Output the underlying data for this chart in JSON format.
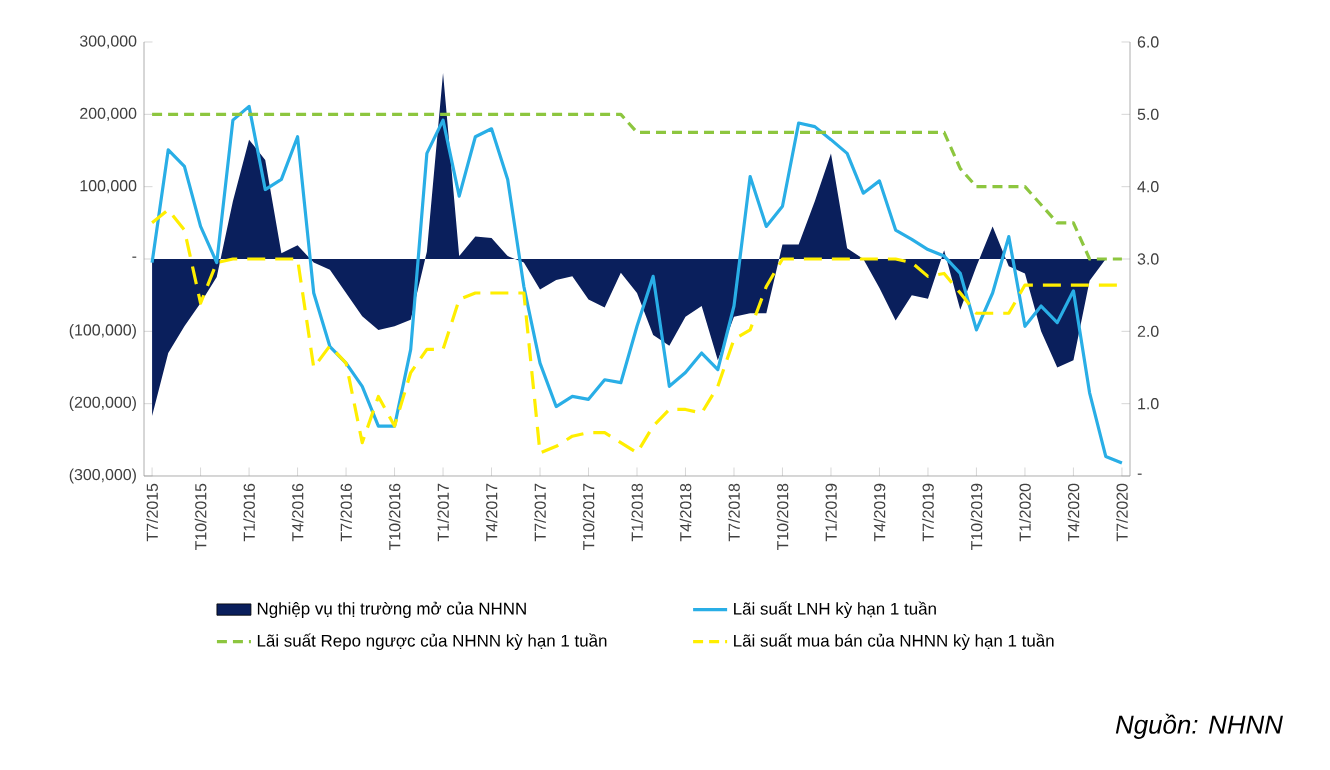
{
  "chart_data": {
    "type": "line",
    "categories": [
      "T7/2015",
      null,
      null,
      "T10/2015",
      null,
      null,
      "T1/2016",
      null,
      null,
      "T4/2016",
      null,
      null,
      "T7/2016",
      null,
      null,
      "T10/2016",
      null,
      null,
      "T1/2017",
      null,
      null,
      "T4/2017",
      null,
      null,
      "T7/2017",
      null,
      null,
      "T10/2017",
      null,
      null,
      "T1/2018",
      null,
      null,
      "T4/2018",
      null,
      null,
      "T7/2018",
      null,
      null,
      "T10/2018",
      null,
      null,
      "T1/2019",
      null,
      null,
      "T4/2019",
      null,
      null,
      "T7/2019",
      null,
      null,
      "T10/2019",
      null,
      null,
      "T1/2020",
      null,
      null,
      "T4/2020",
      null,
      null,
      "T7/2020"
    ],
    "series": [
      {
        "name": "Nghiệp  vụ thị trường mở của NHNN",
        "type": "area",
        "axis": "y",
        "color": "#0a1f5c",
        "values": [
          -217000,
          -130000,
          -93000,
          -61000,
          -25000,
          80000,
          165000,
          137000,
          8000,
          19000,
          -5000,
          -15000,
          -47000,
          -79000,
          -98000,
          -93000,
          -84000,
          10000,
          257000,
          4000,
          31000,
          29000,
          4000,
          -5000,
          -42000,
          -29000,
          -24000,
          -56000,
          -67000,
          -19000,
          -47000,
          -105000,
          -120000,
          -80000,
          -65000,
          -140000,
          -80000,
          -75000,
          -75000,
          20000,
          20000,
          80000,
          146000,
          15000,
          0,
          -40000,
          -85000,
          -50000,
          -55000,
          12000,
          -70000,
          -10000,
          45000,
          -10000,
          -20000,
          -100000,
          -150000,
          -140000,
          -30000,
          0,
          0
        ]
      },
      {
        "name": "Lãi suất LNH kỳ hạn 1 tuần",
        "type": "line",
        "axis": "y2",
        "color": "#29aee6",
        "line_style": "solid",
        "values": [
          2.95,
          4.51,
          4.28,
          3.45,
          2.95,
          4.92,
          5.11,
          3.96,
          4.1,
          4.69,
          2.53,
          1.79,
          1.56,
          1.24,
          0.69,
          0.69,
          1.75,
          4.46,
          4.92,
          3.87,
          4.69,
          4.8,
          4.1,
          2.62,
          1.56,
          0.96,
          1.1,
          1.06,
          1.33,
          1.29,
          2.07,
          2.76,
          1.24,
          1.43,
          1.7,
          1.47,
          2.35,
          4.14,
          3.45,
          3.73,
          4.88,
          4.83,
          4.65,
          4.46,
          3.91,
          4.08,
          3.4,
          3.27,
          3.13,
          3.04,
          2.8,
          2.02,
          2.53,
          3.31,
          2.07,
          2.35,
          2.12,
          2.56,
          1.15,
          0.27,
          0.18
        ]
      },
      {
        "name": "Lãi suất Repo ngược của NHNN  kỳ hạn 1 tuần",
        "type": "line",
        "axis": "y2",
        "color": "#8dc63f",
        "line_style": "dashed",
        "values": [
          5.0,
          5.0,
          5.0,
          5.0,
          5.0,
          5.0,
          5.0,
          5.0,
          5.0,
          5.0,
          5.0,
          5.0,
          5.0,
          5.0,
          5.0,
          5.0,
          5.0,
          5.0,
          5.0,
          5.0,
          5.0,
          5.0,
          5.0,
          5.0,
          5.0,
          5.0,
          5.0,
          5.0,
          5.0,
          5.0,
          4.75,
          4.75,
          4.75,
          4.75,
          4.75,
          4.75,
          4.75,
          4.75,
          4.75,
          4.75,
          4.75,
          4.75,
          4.75,
          4.75,
          4.75,
          4.75,
          4.75,
          4.75,
          4.75,
          4.75,
          4.25,
          4.0,
          4.0,
          4.0,
          4.0,
          3.75,
          3.5,
          3.5,
          3.0,
          3.0,
          3.0
        ]
      },
      {
        "name": "Lãi suất mua bán của NHNN  kỳ hạn 1 tuần",
        "type": "line",
        "axis": "y2",
        "color": "#ffee00",
        "line_style": "dashed",
        "values": [
          3.5,
          3.68,
          3.4,
          2.39,
          2.95,
          3.0,
          3.0,
          3.0,
          3.0,
          3.0,
          1.5,
          1.8,
          1.56,
          0.46,
          1.1,
          0.69,
          1.43,
          1.75,
          1.75,
          2.44,
          2.53,
          2.53,
          2.53,
          2.53,
          0.32,
          0.41,
          0.55,
          0.6,
          0.6,
          0.46,
          0.32,
          0.69,
          0.92,
          0.92,
          0.87,
          1.24,
          1.89,
          2.02,
          2.62,
          3.0,
          3.0,
          3.0,
          3.0,
          3.0,
          3.0,
          3.0,
          3.0,
          2.95,
          2.76,
          2.8,
          2.53,
          2.25,
          2.25,
          2.25,
          2.64,
          2.64,
          2.64,
          2.64,
          2.64,
          2.64,
          2.64
        ]
      }
    ],
    "ylim": [
      -300000,
      300000
    ],
    "yticks": [
      {
        "value": -300000,
        "label": "(300,000)"
      },
      {
        "value": -200000,
        "label": "(200,000)"
      },
      {
        "value": -100000,
        "label": "(100,000)"
      },
      {
        "value": 0,
        "label": "-"
      },
      {
        "value": 100000,
        "label": "100,000"
      },
      {
        "value": 200000,
        "label": "200,000"
      },
      {
        "value": 300000,
        "label": "300,000"
      }
    ],
    "y2lim": [
      0,
      6
    ],
    "y2ticks": [
      {
        "value": 0,
        "label": "-"
      },
      {
        "value": 1,
        "label": "1.0"
      },
      {
        "value": 2,
        "label": "2.0"
      },
      {
        "value": 3,
        "label": "3.0"
      },
      {
        "value": 4,
        "label": "4.0"
      },
      {
        "value": 5,
        "label": "5.0"
      },
      {
        "value": 6,
        "label": "6.0"
      }
    ],
    "grid": false,
    "legend": "bottom",
    "annotations": [
      "Nguồn: NHNN"
    ]
  }
}
